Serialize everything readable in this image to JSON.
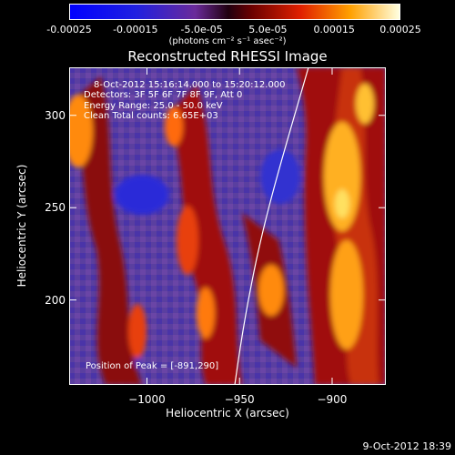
{
  "colorbar": {
    "ticks": [
      "-0.00025",
      "-0.00015",
      "-5.0e-05",
      "5.0e-05",
      "0.00015",
      "0.00025"
    ],
    "tick_values": [
      -0.00025,
      -0.00015,
      -5e-05,
      5e-05,
      0.00015,
      0.00025
    ],
    "units": "(photons cm⁻² s⁻¹ asec⁻²)",
    "range": [
      -0.00025,
      0.00025
    ]
  },
  "chart_data": {
    "type": "heatmap",
    "title": "Reconstructed RHESSI Image",
    "xlabel": "Heliocentric X (arcsec)",
    "ylabel": "Heliocentric Y (arcsec)",
    "xticks": [
      "-1000",
      "-950",
      "-900"
    ],
    "xtick_values": [
      -1000,
      -950,
      -900
    ],
    "yticks": [
      "300",
      "250",
      "200"
    ],
    "ytick_values": [
      300,
      250,
      200
    ],
    "xlim": [
      -1042,
      -871
    ],
    "ylim": [
      154,
      326
    ],
    "annotations": {
      "time_range": "8-Oct-2012 15:16:14.000 to 15:20:12.000",
      "detectors": "Detectors: 3F 5F 6F 7F 8F 9F, Att 0",
      "energy": "Energy Range: 25.0 - 50.0 keV",
      "clean": "Clean   Total counts: 6.65E+03",
      "peak": "Position of Peak = [-891,290]"
    },
    "peak": [
      -891,
      290
    ],
    "limb_visible": true
  },
  "footer": {
    "date": "9-Oct-2012 18:39"
  }
}
